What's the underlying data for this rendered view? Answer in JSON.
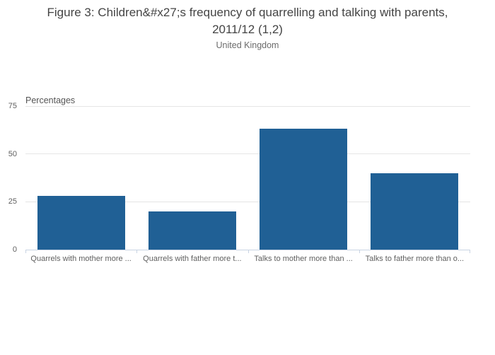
{
  "header": {
    "title_lines": [
      "Figure 3: Children&#x27;s frequency of quarrelling and talking with parents,",
      "2011/12 (1,2)"
    ],
    "subtitle": "United Kingdom"
  },
  "chart_data": {
    "type": "bar",
    "title": "Figure 3: Children&#x27;s frequency of quarrelling and talking with parents, 2011/12 (1,2)",
    "subtitle": "United Kingdom",
    "ylabel": "Percentages",
    "xlabel": "",
    "categories": [
      "Quarrels with mother more ...",
      "Quarrels with father more t...",
      "Talks to mother more than ...",
      "Talks to father more than o..."
    ],
    "values": [
      28,
      20,
      63,
      40
    ],
    "yticks": [
      0,
      25,
      50,
      75
    ],
    "ylim": [
      0,
      75
    ],
    "grid": true,
    "legend_position": "none",
    "colors": {
      "bar": "#206095",
      "gridline": "#e5e5e5",
      "axis": "#c9d4e3"
    }
  }
}
